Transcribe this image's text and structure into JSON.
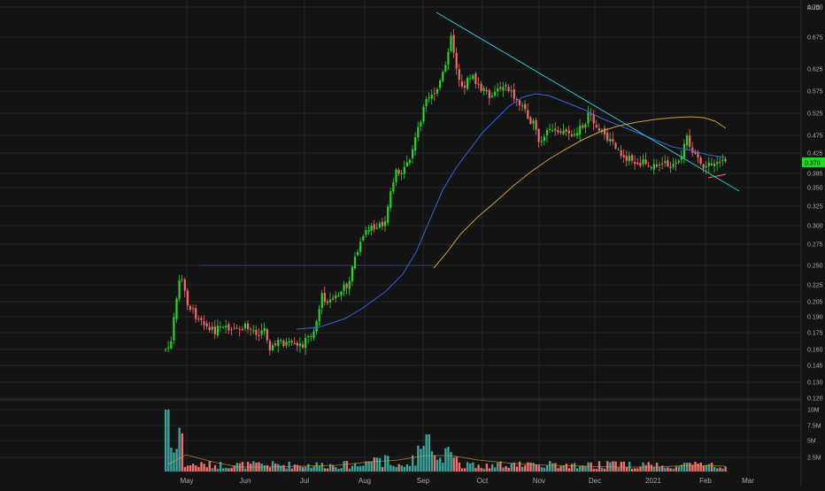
{
  "chart_data": {
    "type": "candlestick",
    "currency_label": "AUD",
    "current_price_label": "0.370",
    "price_ticks": [
      "0.750",
      "0.675",
      "0.625",
      "0.575",
      "0.525",
      "0.475",
      "0.425",
      "0.385",
      "0.350",
      "0.325",
      "0.300",
      "0.275",
      "0.250",
      "0.225",
      "0.205",
      "0.190",
      "0.175",
      "0.160",
      "0.145",
      "0.130",
      "0.120"
    ],
    "volume_ticks": [
      "10M",
      "7.5M",
      "5M",
      "2.5M"
    ],
    "x_ticks": [
      "May",
      "Jun",
      "Jul",
      "Aug",
      "Sep",
      "Oct",
      "Nov",
      "Dec",
      "2021",
      "Feb",
      "Mar"
    ],
    "colors": {
      "background": "#131313",
      "grid": "#262626",
      "up": "#26d626",
      "down": "#f06a6a",
      "vol_up": "#3aa39a",
      "vol_down": "#ef6f6f",
      "ma_short": "#3f5fd6",
      "ma_long": "#c9a23a",
      "trendline": "#2bc4cf",
      "price_tag": "#26d626",
      "axis_text": "#a8a8a8"
    },
    "series": [
      {
        "name": "candles"
      },
      {
        "name": "volume"
      },
      {
        "name": "ma_short"
      },
      {
        "name": "ma_long"
      },
      {
        "name": "trendline"
      }
    ]
  }
}
